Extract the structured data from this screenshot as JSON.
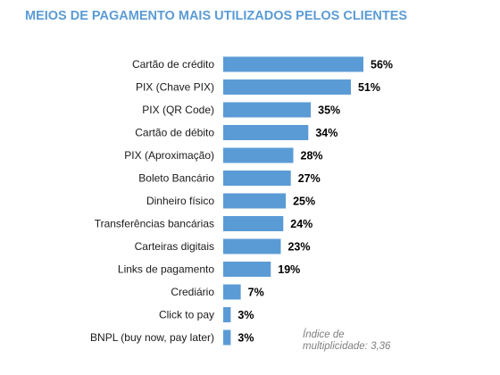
{
  "chart_data": {
    "type": "bar",
    "orientation": "horizontal",
    "title": "MEIOS DE PAGAMENTO MAIS UTILIZADOS PELOS CLIENTES",
    "categories": [
      "Cartão de crédito",
      "PIX (Chave PIX)",
      "PIX (QR Code)",
      "Cartão de débito",
      "PIX (Aproximação)",
      "Boleto Bancário",
      "Dinheiro físico",
      "Transferências bancárias",
      "Carteiras digitais",
      "Links de pagamento",
      "Crediário",
      "Click to pay",
      "BNPL (buy now, pay later)"
    ],
    "values": [
      56,
      51,
      35,
      34,
      28,
      27,
      25,
      24,
      23,
      19,
      7,
      3,
      3
    ],
    "value_suffix": "%",
    "bar_color": "#5b9bd5",
    "title_color": "#5b9bd5",
    "grid": false,
    "xlim": [
      0,
      60
    ],
    "annotation": "Índice de multiplicidade: 3,36"
  }
}
